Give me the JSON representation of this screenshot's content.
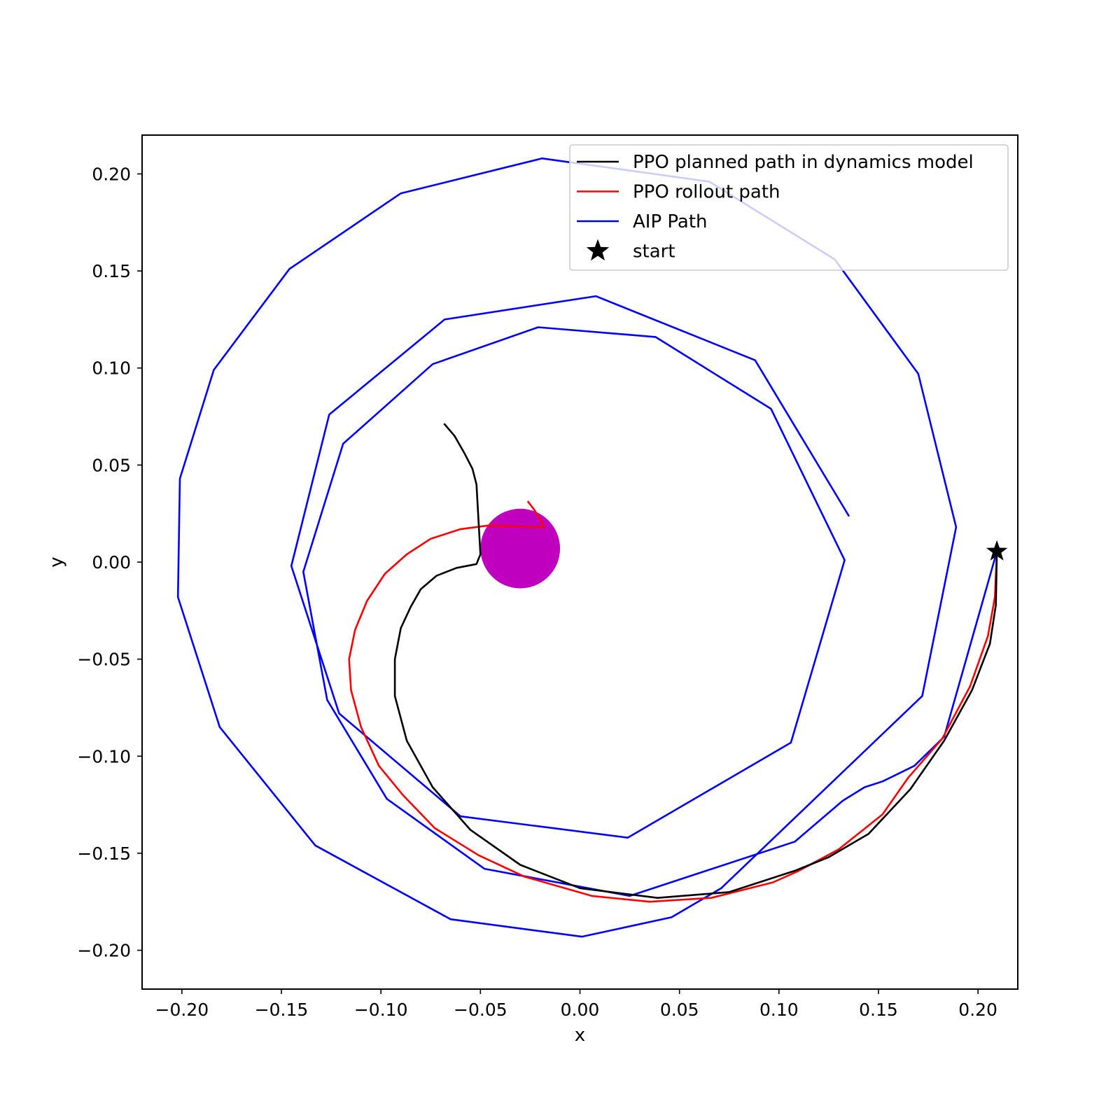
{
  "chart_data": {
    "type": "line",
    "xlabel": "x",
    "ylabel": "y",
    "xlim": [
      -0.22,
      0.22
    ],
    "ylim": [
      -0.22,
      0.22
    ],
    "xticks": [
      -0.2,
      -0.15,
      -0.1,
      -0.05,
      0.0,
      0.05,
      0.1,
      0.15,
      0.2
    ],
    "xtick_labels": [
      "−0.20",
      "−0.15",
      "−0.10",
      "−0.05",
      "0.00",
      "0.05",
      "0.10",
      "0.15",
      "0.20"
    ],
    "yticks": [
      0.2,
      0.15,
      0.1,
      0.05,
      0.0,
      -0.05,
      -0.1,
      -0.15,
      -0.2
    ],
    "ytick_labels": [
      "0.20",
      "0.15",
      "0.10",
      "0.05",
      "0.00",
      "−0.05",
      "−0.10",
      "−0.15",
      "−0.20"
    ],
    "grid": false,
    "legend_position": "top-right",
    "legend": [
      {
        "label": "PPO planned path in dynamics model",
        "kind": "line",
        "color": "#000000"
      },
      {
        "label": "PPO rollout path",
        "kind": "line",
        "color": "#ff0000"
      },
      {
        "label": "AIP Path",
        "kind": "line",
        "color": "#0000ff"
      },
      {
        "label": "start",
        "kind": "star",
        "color": "#000000"
      }
    ],
    "series": [
      {
        "name": "AIP Path",
        "color": "#0000ff",
        "points": [
          [
            0.2095,
            0.0055
          ],
          [
            0.183,
            -0.09
          ],
          [
            0.168,
            -0.105
          ],
          [
            0.152,
            -0.113
          ],
          [
            0.143,
            -0.116
          ],
          [
            0.132,
            -0.123
          ],
          [
            0.108,
            -0.144
          ],
          [
            0.025,
            -0.172
          ],
          [
            -0.048,
            -0.158
          ],
          [
            -0.097,
            -0.122
          ],
          [
            -0.127,
            -0.071
          ],
          [
            -0.139,
            -0.005
          ],
          [
            -0.119,
            0.061
          ],
          [
            -0.074,
            0.102
          ],
          [
            -0.021,
            0.121
          ],
          [
            0.038,
            0.116
          ],
          [
            0.096,
            0.079
          ],
          [
            0.133,
            0.001
          ],
          [
            0.106,
            -0.093
          ],
          [
            0.024,
            -0.142
          ],
          [
            -0.06,
            -0.131
          ],
          [
            -0.121,
            -0.078
          ],
          [
            -0.145,
            -0.002
          ],
          [
            -0.126,
            0.076
          ],
          [
            -0.068,
            0.125
          ],
          [
            0.008,
            0.137
          ],
          [
            0.088,
            0.104
          ],
          [
            0.135,
            0.024
          ]
        ]
      },
      {
        "name": "AIP Path",
        "color": "#0000ff",
        "points": [
          [
            0.071,
            -0.168
          ],
          [
            0.172,
            -0.069
          ],
          [
            0.189,
            0.018
          ],
          [
            0.17,
            0.097
          ],
          [
            0.128,
            0.156
          ],
          [
            0.065,
            0.196
          ],
          [
            -0.019,
            0.208
          ],
          [
            -0.09,
            0.19
          ],
          [
            -0.146,
            0.151
          ],
          [
            -0.184,
            0.099
          ],
          [
            -0.201,
            0.043
          ],
          [
            -0.202,
            -0.018
          ],
          [
            -0.181,
            -0.085
          ],
          [
            -0.133,
            -0.146
          ],
          [
            -0.065,
            -0.184
          ],
          [
            0.001,
            -0.193
          ],
          [
            0.046,
            -0.183
          ],
          [
            0.071,
            -0.168
          ]
        ]
      },
      {
        "name": "PPO rollout path",
        "color": "#ff0000",
        "points": [
          [
            0.2095,
            0.0055
          ],
          [
            0.2085,
            -0.018
          ],
          [
            0.205,
            -0.038
          ],
          [
            0.196,
            -0.064
          ],
          [
            0.182,
            -0.091
          ],
          [
            0.165,
            -0.111
          ],
          [
            0.152,
            -0.13
          ],
          [
            0.13,
            -0.148
          ],
          [
            0.11,
            -0.159
          ],
          [
            0.097,
            -0.165
          ],
          [
            0.066,
            -0.173
          ],
          [
            0.035,
            -0.175
          ],
          [
            0.006,
            -0.172
          ],
          [
            -0.028,
            -0.162
          ],
          [
            -0.051,
            -0.151
          ],
          [
            -0.073,
            -0.137
          ],
          [
            -0.089,
            -0.12
          ],
          [
            -0.101,
            -0.105
          ],
          [
            -0.11,
            -0.085
          ],
          [
            -0.115,
            -0.066
          ],
          [
            -0.116,
            -0.05
          ],
          [
            -0.113,
            -0.035
          ],
          [
            -0.107,
            -0.02
          ],
          [
            -0.098,
            -0.006
          ],
          [
            -0.087,
            0.004
          ],
          [
            -0.075,
            0.012
          ],
          [
            -0.06,
            0.017
          ],
          [
            -0.045,
            0.019
          ],
          [
            -0.025,
            0.018
          ],
          [
            -0.018,
            0.018
          ],
          [
            -0.02,
            0.022
          ],
          [
            -0.023,
            0.027
          ],
          [
            -0.026,
            0.031
          ]
        ]
      },
      {
        "name": "PPO planned path in dynamics model",
        "color": "#000000",
        "points": [
          [
            0.2095,
            0.0055
          ],
          [
            0.209,
            -0.022
          ],
          [
            0.206,
            -0.042
          ],
          [
            0.197,
            -0.066
          ],
          [
            0.183,
            -0.092
          ],
          [
            0.166,
            -0.117
          ],
          [
            0.145,
            -0.14
          ],
          [
            0.125,
            -0.152
          ],
          [
            0.108,
            -0.159
          ],
          [
            0.075,
            -0.17
          ],
          [
            0.039,
            -0.173
          ],
          [
            0.0,
            -0.168
          ],
          [
            -0.03,
            -0.156
          ],
          [
            -0.055,
            -0.138
          ],
          [
            -0.074,
            -0.116
          ],
          [
            -0.087,
            -0.092
          ],
          [
            -0.093,
            -0.069
          ],
          [
            -0.093,
            -0.05
          ],
          [
            -0.09,
            -0.034
          ],
          [
            -0.085,
            -0.023
          ],
          [
            -0.08,
            -0.014
          ],
          [
            -0.072,
            -0.007
          ],
          [
            -0.062,
            -0.003
          ],
          [
            -0.052,
            -0.001
          ],
          [
            -0.05,
            0.004
          ],
          [
            -0.051,
            0.022
          ],
          [
            -0.052,
            0.04
          ],
          [
            -0.054,
            0.048
          ],
          [
            -0.058,
            0.056
          ],
          [
            -0.063,
            0.065
          ],
          [
            -0.068,
            0.071
          ]
        ]
      }
    ],
    "obstacle": {
      "center": [
        -0.03,
        0.007
      ],
      "radius": 0.02,
      "color": "#bf00bf"
    },
    "start": {
      "x": 0.2095,
      "y": 0.0055,
      "color": "#000000"
    }
  }
}
